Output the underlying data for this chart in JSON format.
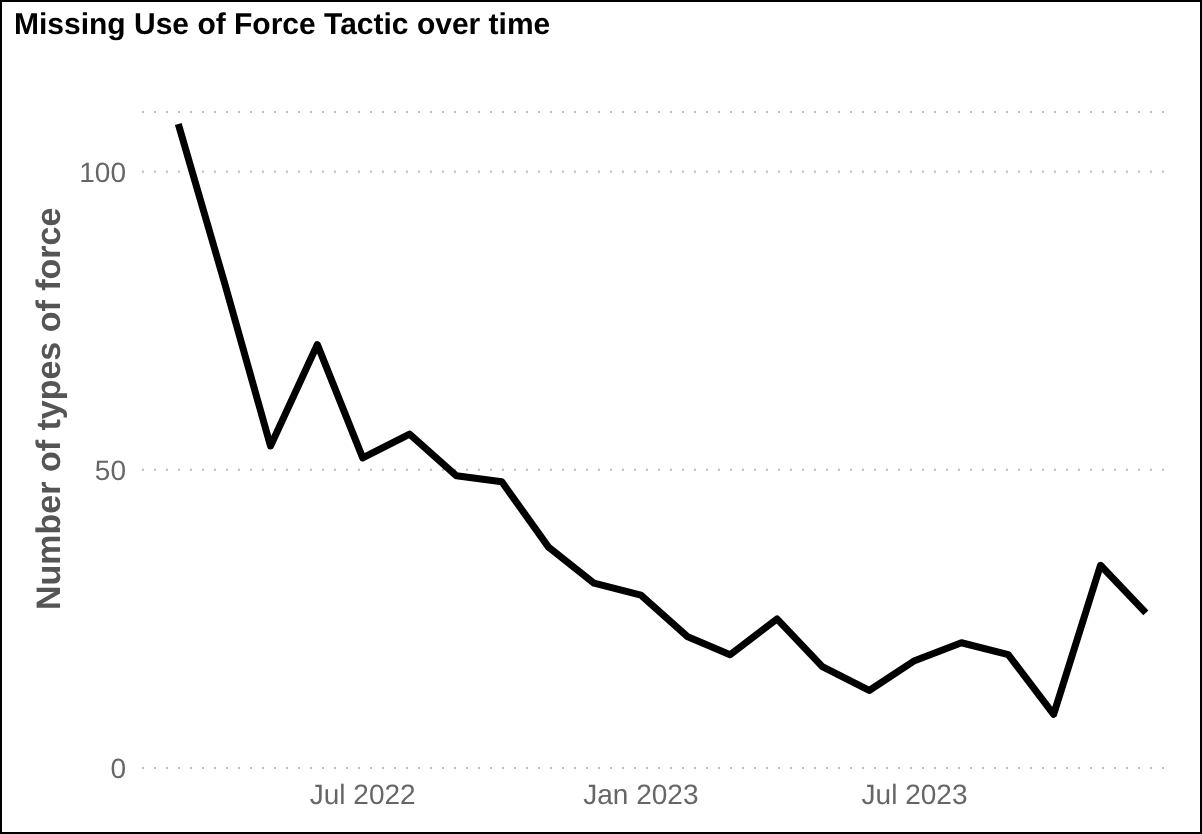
{
  "chart_data": {
    "type": "line",
    "title": "Missing Use of Force Tactic over time",
    "ylabel": "Number of types of force",
    "x": [
      "2022-03",
      "2022-04",
      "2022-05",
      "2022-06",
      "2022-07",
      "2022-08",
      "2022-09",
      "2022-10",
      "2022-11",
      "2022-12",
      "2023-01",
      "2023-02",
      "2023-03",
      "2023-04",
      "2023-05",
      "2023-06",
      "2023-07",
      "2023-08",
      "2023-09",
      "2023-10",
      "2023-11",
      "2023-12"
    ],
    "series": [
      {
        "color": "#000000",
        "values": [
          108,
          81,
          54,
          71,
          52,
          56,
          49,
          48,
          37,
          31,
          29,
          22,
          19,
          25,
          17,
          13,
          18,
          21,
          19,
          9,
          34,
          26
        ]
      }
    ],
    "xlim": [
      "2022-02-05",
      "2023-12-13"
    ],
    "xticks": [
      {
        "value": "2022-07",
        "label": "Jul 2022"
      },
      {
        "value": "2023-01",
        "label": "Jan 2023"
      },
      {
        "value": "2023-07",
        "label": "Jul 2023"
      }
    ],
    "ylim": [
      0,
      110
    ],
    "yticks": [
      0,
      50,
      100
    ],
    "grid": "y",
    "marker": "none",
    "line_style": "solid"
  }
}
